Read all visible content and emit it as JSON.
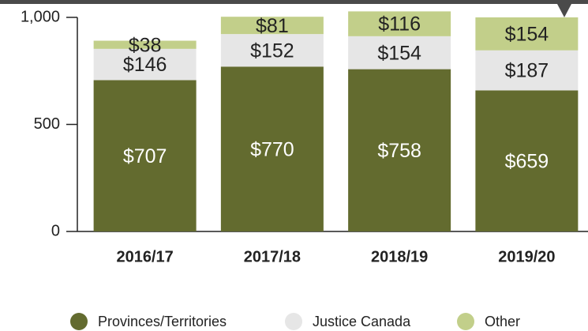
{
  "chart_data": {
    "type": "bar",
    "stacked": true,
    "categories": [
      "2016/17",
      "2017/18",
      "2018/19",
      "2019/20"
    ],
    "series": [
      {
        "name": "Provinces/Territories",
        "color": "#636b2f",
        "values": [
          707,
          770,
          758,
          659
        ],
        "value_labels": [
          "$707",
          "$770",
          "$758",
          "$659"
        ]
      },
      {
        "name": "Justice Canada",
        "color": "#e6e6e6",
        "values": [
          146,
          152,
          154,
          187
        ],
        "value_labels": [
          "$146",
          "$152",
          "$154",
          "$187"
        ]
      },
      {
        "name": "Other",
        "color": "#c2cf8a",
        "values": [
          38,
          81,
          116,
          154
        ],
        "value_labels": [
          "$38",
          "$81",
          "$116",
          "$154"
        ]
      }
    ],
    "ylim": [
      0,
      1000
    ],
    "yticks": [
      0,
      500,
      {
        "value": 1000,
        "label": "1,000"
      }
    ]
  }
}
